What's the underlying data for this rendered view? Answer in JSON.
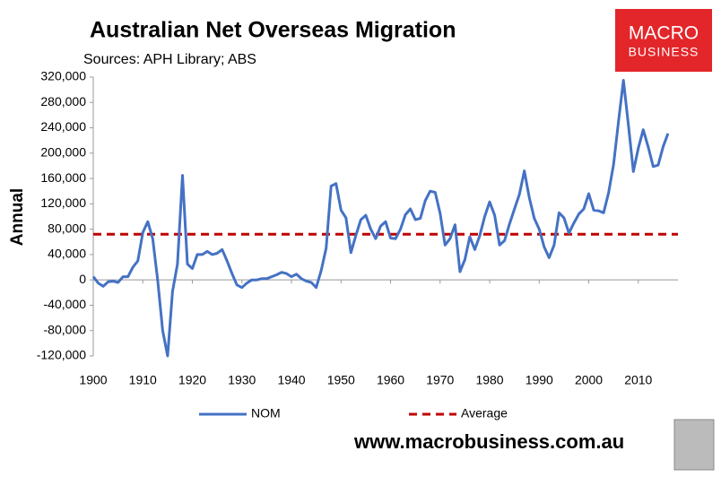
{
  "chart_data": {
    "type": "line",
    "title": "Australian Net Overseas Migration",
    "subtitle": "Sources: APH Library; ABS",
    "y_label": "Annual",
    "x": [
      1900,
      1901,
      1902,
      1903,
      1904,
      1905,
      1906,
      1907,
      1908,
      1909,
      1910,
      1911,
      1912,
      1913,
      1914,
      1915,
      1916,
      1917,
      1918,
      1919,
      1920,
      1921,
      1922,
      1923,
      1924,
      1925,
      1926,
      1927,
      1928,
      1929,
      1930,
      1931,
      1932,
      1933,
      1934,
      1935,
      1936,
      1937,
      1938,
      1939,
      1940,
      1941,
      1942,
      1943,
      1944,
      1945,
      1946,
      1947,
      1948,
      1949,
      1950,
      1951,
      1952,
      1953,
      1954,
      1955,
      1956,
      1957,
      1958,
      1959,
      1960,
      1961,
      1962,
      1963,
      1964,
      1965,
      1966,
      1967,
      1968,
      1969,
      1970,
      1971,
      1972,
      1973,
      1974,
      1975,
      1976,
      1977,
      1978,
      1979,
      1980,
      1981,
      1982,
      1983,
      1984,
      1985,
      1986,
      1987,
      1988,
      1989,
      1990,
      1991,
      1992,
      1993,
      1994,
      1995,
      1996,
      1997,
      1998,
      1999,
      2000,
      2001,
      2002,
      2003,
      2004,
      2005,
      2006,
      2007,
      2008,
      2009,
      2010,
      2011,
      2012,
      2013,
      2014,
      2015,
      2016
    ],
    "series": [
      {
        "name": "NOM",
        "color": "#4472c4",
        "values": [
          5000,
          -5000,
          -10000,
          -3000,
          -2000,
          -4000,
          5000,
          5000,
          20000,
          30000,
          75000,
          92000,
          65000,
          0,
          -80000,
          -120000,
          -18000,
          25000,
          165000,
          25000,
          18000,
          40000,
          40000,
          45000,
          40000,
          42000,
          48000,
          30000,
          10000,
          -8000,
          -12000,
          -5000,
          0,
          0,
          2000,
          2000,
          5000,
          8000,
          12000,
          10000,
          5000,
          9000,
          2000,
          -2000,
          -4000,
          -12000,
          15000,
          50000,
          148000,
          152000,
          110000,
          98000,
          43000,
          70000,
          95000,
          102000,
          80000,
          65000,
          85000,
          92000,
          66000,
          65000,
          80000,
          103000,
          112000,
          95000,
          97000,
          125000,
          140000,
          138000,
          105000,
          55000,
          65000,
          87000,
          13000,
          32000,
          68000,
          48000,
          70000,
          100000,
          123000,
          102000,
          55000,
          62000,
          88000,
          112000,
          135000,
          172000,
          130000,
          97000,
          80000,
          52000,
          35000,
          55000,
          106000,
          98000,
          74000,
          90000,
          104000,
          112000,
          136000,
          110000,
          109000,
          106000,
          137000,
          182000,
          250000,
          315000,
          245000,
          171000,
          208000,
          237000,
          210000,
          179000,
          181000,
          210000,
          231000
        ]
      }
    ],
    "average_line": {
      "name": "Average",
      "value": 72000,
      "color": "#c00000"
    },
    "xlim": [
      1900,
      2018
    ],
    "xticks": [
      1900,
      1910,
      1920,
      1930,
      1940,
      1950,
      1960,
      1970,
      1980,
      1990,
      2000,
      2010
    ],
    "ylim": [
      -120000,
      320000
    ],
    "yticks": [
      {
        "value": -120000,
        "label": "-120,000"
      },
      {
        "value": -80000,
        "label": "-80,000"
      },
      {
        "value": -40000,
        "label": "-40,000"
      },
      0,
      {
        "value": 40000,
        "label": "40,000"
      },
      {
        "value": 80000,
        "label": "80,000"
      },
      {
        "value": 120000,
        "label": "120,000"
      },
      {
        "value": 160000,
        "label": "160,000"
      },
      {
        "value": 200000,
        "label": "200,000"
      },
      {
        "value": 240000,
        "label": "240,000"
      },
      {
        "value": 280000,
        "label": "280,000"
      },
      {
        "value": 320000,
        "label": "320,000"
      }
    ],
    "legend": "bottom"
  },
  "branding": {
    "logo": [
      "MACRO",
      "BUSINESS"
    ],
    "url": "www.macrobusiness.com.au"
  }
}
